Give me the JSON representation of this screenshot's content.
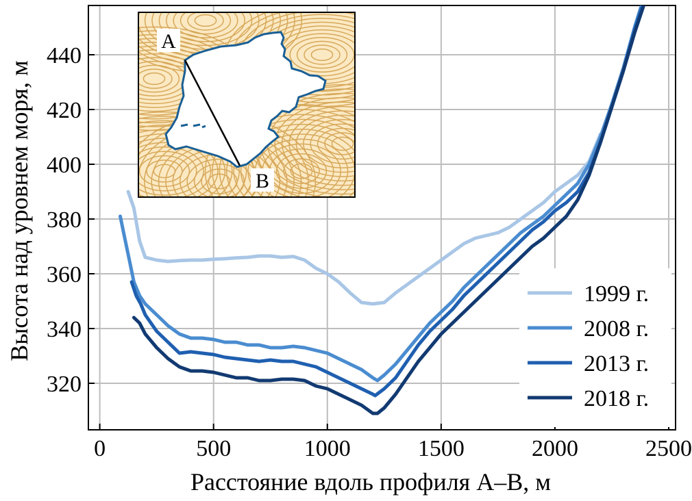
{
  "chart_data": {
    "type": "line",
    "xlabel": "Расстояние вдоль профиля A–B, м",
    "ylabel": "Высота над уровнем моря, м",
    "xlim": [
      -50,
      2530
    ],
    "ylim": [
      303,
      458
    ],
    "xticks": [
      0,
      500,
      1000,
      1500,
      2000,
      2500
    ],
    "yticks": [
      320,
      340,
      360,
      380,
      400,
      420,
      440
    ],
    "grid": true,
    "legend_position": "bottom-right",
    "series": [
      {
        "name": "1999 г.",
        "color": "#a9c6e6",
        "points": [
          [
            125,
            390
          ],
          [
            150,
            384
          ],
          [
            175,
            372
          ],
          [
            200,
            366
          ],
          [
            250,
            365
          ],
          [
            300,
            364.5
          ],
          [
            350,
            364.8
          ],
          [
            400,
            365
          ],
          [
            450,
            365
          ],
          [
            500,
            365.3
          ],
          [
            550,
            365.5
          ],
          [
            600,
            365.8
          ],
          [
            650,
            366
          ],
          [
            700,
            366.5
          ],
          [
            750,
            366.5
          ],
          [
            800,
            366
          ],
          [
            850,
            366.3
          ],
          [
            900,
            365
          ],
          [
            950,
            362
          ],
          [
            1000,
            360
          ],
          [
            1050,
            357
          ],
          [
            1100,
            353
          ],
          [
            1150,
            349.5
          ],
          [
            1200,
            349
          ],
          [
            1250,
            349.5
          ],
          [
            1300,
            353
          ],
          [
            1350,
            356
          ],
          [
            1400,
            359
          ],
          [
            1450,
            362
          ],
          [
            1500,
            365
          ],
          [
            1550,
            368
          ],
          [
            1600,
            371
          ],
          [
            1650,
            373
          ],
          [
            1700,
            374
          ],
          [
            1750,
            375
          ],
          [
            1800,
            377
          ],
          [
            1850,
            380
          ],
          [
            1900,
            383
          ],
          [
            1950,
            386
          ],
          [
            2000,
            390
          ],
          [
            2050,
            393
          ],
          [
            2100,
            396
          ],
          [
            2150,
            401
          ],
          [
            2200,
            411
          ]
        ]
      },
      {
        "name": "2008 г.",
        "color": "#4a8cd0",
        "points": [
          [
            90,
            381
          ],
          [
            110,
            373
          ],
          [
            130,
            365
          ],
          [
            150,
            357
          ],
          [
            175,
            352
          ],
          [
            200,
            349
          ],
          [
            250,
            345
          ],
          [
            300,
            341
          ],
          [
            350,
            338
          ],
          [
            400,
            336.5
          ],
          [
            450,
            336.5
          ],
          [
            500,
            336
          ],
          [
            550,
            335
          ],
          [
            600,
            335
          ],
          [
            650,
            334
          ],
          [
            700,
            334
          ],
          [
            750,
            333
          ],
          [
            800,
            333
          ],
          [
            850,
            333.5
          ],
          [
            900,
            333
          ],
          [
            950,
            332
          ],
          [
            1000,
            331
          ],
          [
            1050,
            329
          ],
          [
            1100,
            327
          ],
          [
            1150,
            325
          ],
          [
            1200,
            322
          ],
          [
            1220,
            321
          ],
          [
            1250,
            323
          ],
          [
            1300,
            327
          ],
          [
            1350,
            332
          ],
          [
            1400,
            337
          ],
          [
            1450,
            342
          ],
          [
            1500,
            346
          ],
          [
            1550,
            350
          ],
          [
            1600,
            355
          ],
          [
            1650,
            359
          ],
          [
            1700,
            363
          ],
          [
            1750,
            367
          ],
          [
            1800,
            371
          ],
          [
            1850,
            375
          ],
          [
            1900,
            378
          ],
          [
            1950,
            381
          ],
          [
            2000,
            385
          ],
          [
            2050,
            389
          ],
          [
            2100,
            393
          ],
          [
            2150,
            400
          ],
          [
            2200,
            410
          ],
          [
            2250,
            422
          ],
          [
            2300,
            435
          ],
          [
            2350,
            450
          ],
          [
            2380,
            458
          ]
        ]
      },
      {
        "name": "2013 г.",
        "color": "#1f5fb0",
        "points": [
          [
            140,
            357
          ],
          [
            160,
            352
          ],
          [
            180,
            349
          ],
          [
            200,
            345
          ],
          [
            250,
            339
          ],
          [
            300,
            335
          ],
          [
            350,
            331
          ],
          [
            400,
            331.5
          ],
          [
            450,
            331
          ],
          [
            500,
            330.5
          ],
          [
            550,
            329.5
          ],
          [
            600,
            329
          ],
          [
            650,
            328.5
          ],
          [
            700,
            328
          ],
          [
            750,
            328.5
          ],
          [
            800,
            328
          ],
          [
            850,
            328
          ],
          [
            900,
            327
          ],
          [
            950,
            326
          ],
          [
            1000,
            324
          ],
          [
            1050,
            322
          ],
          [
            1100,
            320
          ],
          [
            1150,
            318
          ],
          [
            1200,
            316
          ],
          [
            1210,
            315.5
          ],
          [
            1250,
            318
          ],
          [
            1300,
            322
          ],
          [
            1350,
            328
          ],
          [
            1400,
            334
          ],
          [
            1450,
            339
          ],
          [
            1500,
            343
          ],
          [
            1550,
            347
          ],
          [
            1600,
            352
          ],
          [
            1650,
            356
          ],
          [
            1700,
            360
          ],
          [
            1750,
            364
          ],
          [
            1800,
            368
          ],
          [
            1850,
            372
          ],
          [
            1900,
            376
          ],
          [
            1950,
            379
          ],
          [
            2000,
            383
          ],
          [
            2050,
            386
          ],
          [
            2100,
            390
          ],
          [
            2150,
            397
          ],
          [
            2200,
            408
          ],
          [
            2250,
            421
          ],
          [
            2300,
            434
          ],
          [
            2350,
            449
          ],
          [
            2385,
            458
          ]
        ]
      },
      {
        "name": "2018 г.",
        "color": "#123a72",
        "points": [
          [
            150,
            344
          ],
          [
            175,
            342
          ],
          [
            200,
            338
          ],
          [
            250,
            333
          ],
          [
            300,
            329
          ],
          [
            350,
            326
          ],
          [
            400,
            324.5
          ],
          [
            450,
            324.5
          ],
          [
            500,
            324
          ],
          [
            550,
            323
          ],
          [
            600,
            322
          ],
          [
            650,
            322
          ],
          [
            700,
            321
          ],
          [
            750,
            321
          ],
          [
            800,
            321.5
          ],
          [
            850,
            321.5
          ],
          [
            900,
            321
          ],
          [
            950,
            319
          ],
          [
            1000,
            318
          ],
          [
            1050,
            316
          ],
          [
            1100,
            314
          ],
          [
            1150,
            312
          ],
          [
            1200,
            309
          ],
          [
            1220,
            309
          ],
          [
            1250,
            311
          ],
          [
            1300,
            316
          ],
          [
            1350,
            322
          ],
          [
            1400,
            328
          ],
          [
            1450,
            333
          ],
          [
            1500,
            338
          ],
          [
            1550,
            342
          ],
          [
            1600,
            346
          ],
          [
            1650,
            350
          ],
          [
            1700,
            354
          ],
          [
            1750,
            358
          ],
          [
            1800,
            362
          ],
          [
            1850,
            366
          ],
          [
            1900,
            370
          ],
          [
            1950,
            373
          ],
          [
            2000,
            377
          ],
          [
            2050,
            381
          ],
          [
            2100,
            387
          ],
          [
            2150,
            396
          ],
          [
            2200,
            408
          ],
          [
            2250,
            421
          ],
          [
            2300,
            434
          ],
          [
            2350,
            448
          ],
          [
            2390,
            458
          ]
        ]
      }
    ]
  },
  "inset": {
    "point_a_label": "A",
    "point_b_label": "B",
    "map_background": "#fbe9c3",
    "contour_color": "#d7a85a",
    "outline_color": "#1a5f95"
  }
}
